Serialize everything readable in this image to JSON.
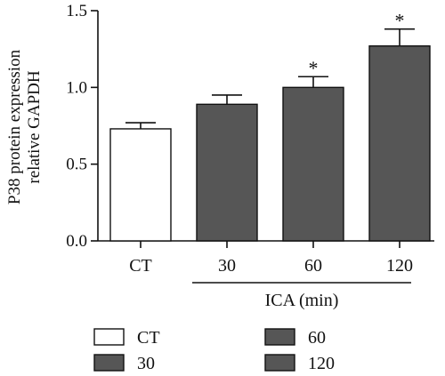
{
  "chart_data": {
    "type": "bar",
    "ylabel_lines": [
      "P38 protein expression",
      "relative GAPDH"
    ],
    "xlabel": "",
    "ylim": [
      0,
      1.5
    ],
    "yticks": [
      "0.0",
      "0.5",
      "1.0",
      "1.5"
    ],
    "categories": [
      "CT",
      "30",
      "60",
      "120"
    ],
    "values": [
      0.73,
      0.89,
      1.0,
      1.27
    ],
    "errors": [
      0.04,
      0.06,
      0.07,
      0.11
    ],
    "significance": [
      "",
      "",
      "*",
      "*"
    ],
    "bar_colors": [
      "#ffffff",
      "#565656",
      "#565656",
      "#565656"
    ],
    "group_label": "ICA (min)",
    "legend": [
      {
        "label": "CT",
        "color": "#ffffff"
      },
      {
        "label": "30",
        "color": "#565656"
      },
      {
        "label": "60",
        "color": "#565656"
      },
      {
        "label": "120",
        "color": "#565656"
      }
    ],
    "grid": false
  }
}
